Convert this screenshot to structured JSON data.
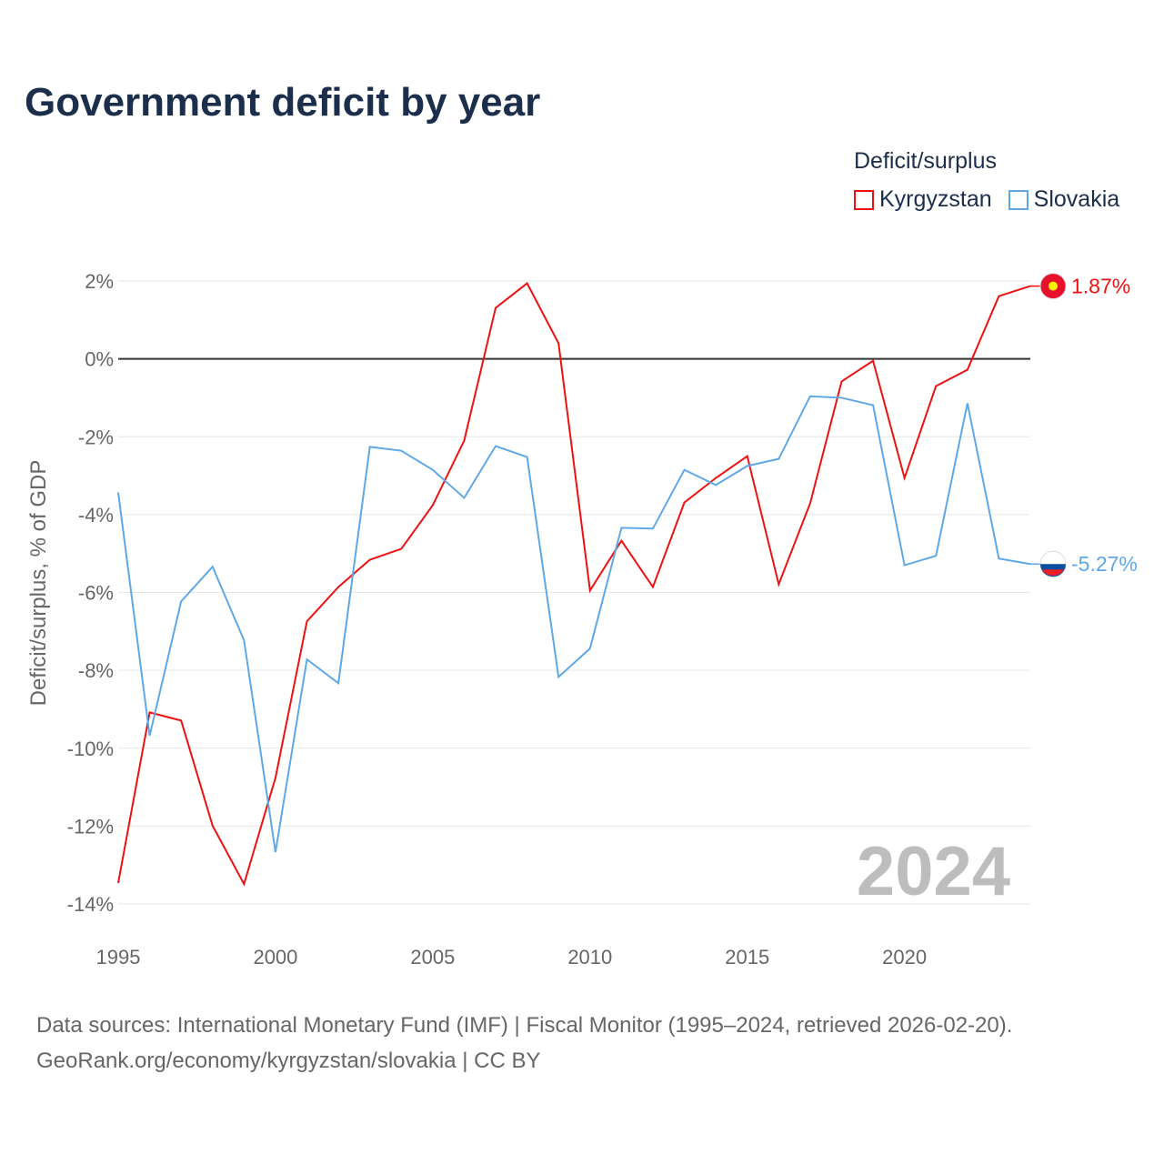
{
  "title": "Government deficit by year",
  "legend": {
    "title": "Deficit/surplus",
    "items": [
      {
        "label": "Kyrgyzstan",
        "color": "#ee1111"
      },
      {
        "label": "Slovakia",
        "color": "#5fa8e8"
      }
    ]
  },
  "year_watermark": "2024",
  "source": {
    "line1": "Data sources: International Monetary Fund (IMF) | Fiscal Monitor (1995–2024, retrieved 2026-02-20).",
    "line2": "GeoRank.org/economy/kyrgyzstan/slovakia | CC BY"
  },
  "chart_data": {
    "type": "line",
    "title": "Government deficit by year",
    "xlabel": "",
    "ylabel": "Deficit/surplus, % of GDP",
    "xlim": [
      1995,
      2024
    ],
    "ylim": [
      -14,
      2
    ],
    "x_ticks": [
      1995,
      2000,
      2005,
      2010,
      2015,
      2020
    ],
    "y_ticks": [
      2,
      0,
      -2,
      -4,
      -6,
      -8,
      -10,
      -12,
      -14
    ],
    "y_tick_labels": [
      "2%",
      "0%",
      "-2%",
      "-4%",
      "-6%",
      "-8%",
      "-10%",
      "-12%",
      "-14%"
    ],
    "grid": true,
    "legend_position": "top-right",
    "x": [
      1995,
      1996,
      1997,
      1998,
      1999,
      2000,
      2001,
      2002,
      2003,
      2004,
      2005,
      2006,
      2007,
      2008,
      2009,
      2010,
      2011,
      2012,
      2013,
      2014,
      2015,
      2016,
      2017,
      2018,
      2019,
      2020,
      2021,
      2022,
      2023,
      2024
    ],
    "series": [
      {
        "name": "Kyrgyzstan",
        "color": "#ee1111",
        "end_label": "1.87%",
        "values": [
          -13.46,
          -9.08,
          -9.29,
          -11.99,
          -13.49,
          -10.76,
          -6.74,
          -5.86,
          -5.16,
          -4.88,
          -3.76,
          -2.1,
          1.31,
          1.94,
          0.4,
          -5.95,
          -4.67,
          -5.86,
          -3.69,
          -3.06,
          -2.5,
          -5.79,
          -3.71,
          -0.58,
          -0.05,
          -3.06,
          -0.7,
          -0.28,
          1.61,
          1.87
        ]
      },
      {
        "name": "Slovakia",
        "color": "#5fa8e8",
        "end_label": "-5.27%",
        "values": [
          -3.43,
          -9.68,
          -6.23,
          -5.34,
          -7.23,
          -12.67,
          -7.72,
          -8.33,
          -2.26,
          -2.36,
          -2.85,
          -3.57,
          -2.24,
          -2.52,
          -8.17,
          -7.44,
          -4.34,
          -4.36,
          -2.85,
          -3.24,
          -2.75,
          -2.57,
          -0.96,
          -1.0,
          -1.19,
          -5.3,
          -5.06,
          -1.14,
          -5.13,
          -5.27
        ]
      }
    ]
  }
}
